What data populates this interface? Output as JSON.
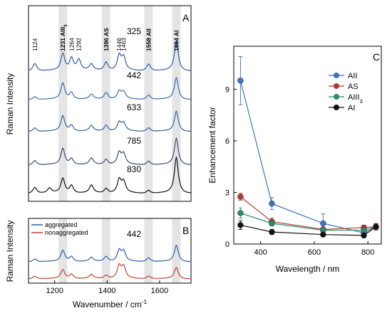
{
  "chart_data": [
    {
      "panel": "A",
      "type": "line",
      "ylabel": "Raman Intensity",
      "xlim": [
        1100,
        1720
      ],
      "spectra": [
        {
          "name": "325",
          "color": "#2f5ea8",
          "peaks": [
            [
              1124,
              1.0
            ],
            [
              1231,
              2.2
            ],
            [
              1264,
              1.6
            ],
            [
              1292,
              1.4
            ],
            [
              1340,
              0.8
            ],
            [
              1396,
              1.1
            ],
            [
              1446,
              1.9
            ],
            [
              1463,
              1.6
            ],
            [
              1558,
              0.9
            ],
            [
              1664,
              3.8
            ]
          ]
        },
        {
          "name": "442",
          "color": "#3c69b0",
          "peaks": [
            [
              1124,
              0.4
            ],
            [
              1231,
              2.1
            ],
            [
              1264,
              0.9
            ],
            [
              1340,
              0.6
            ],
            [
              1396,
              0.9
            ],
            [
              1446,
              1.0
            ],
            [
              1463,
              0.9
            ],
            [
              1558,
              0.6
            ],
            [
              1664,
              2.8
            ]
          ]
        },
        {
          "name": "633",
          "color": "#3a5f9a",
          "peaks": [
            [
              1124,
              0.5
            ],
            [
              1231,
              2.0
            ],
            [
              1264,
              0.8
            ],
            [
              1340,
              0.7
            ],
            [
              1396,
              0.8
            ],
            [
              1446,
              1.1
            ],
            [
              1463,
              1.0
            ],
            [
              1558,
              0.5
            ],
            [
              1664,
              2.6
            ]
          ]
        },
        {
          "name": "785",
          "color": "#3f4a6e",
          "peaks": [
            [
              1124,
              0.6
            ],
            [
              1231,
              2.1
            ],
            [
              1264,
              0.8
            ],
            [
              1340,
              0.8
            ],
            [
              1396,
              0.7
            ],
            [
              1446,
              1.5
            ],
            [
              1463,
              1.3
            ],
            [
              1558,
              0.5
            ],
            [
              1664,
              3.4
            ]
          ]
        },
        {
          "name": "830",
          "color": "#111111",
          "peaks": [
            [
              1124,
              0.8
            ],
            [
              1180,
              0.6
            ],
            [
              1231,
              1.9
            ],
            [
              1264,
              1.0
            ],
            [
              1340,
              1.0
            ],
            [
              1396,
              0.6
            ],
            [
              1446,
              1.7
            ],
            [
              1463,
              1.4
            ],
            [
              1558,
              0.4
            ],
            [
              1664,
              4.6
            ]
          ]
        }
      ],
      "bands": [
        1231,
        1396,
        1558,
        1664
      ],
      "annotations": [
        {
          "text": "1124",
          "x": 1124,
          "bold": false
        },
        {
          "text": "1231 AIII",
          "sub": "3",
          "x": 1231,
          "bold": true
        },
        {
          "text": "1264",
          "x": 1264,
          "bold": false
        },
        {
          "text": "1292",
          "x": 1292,
          "bold": false
        },
        {
          "text": "1396 AS",
          "x": 1396,
          "bold": true
        },
        {
          "text": "1446",
          "x": 1446,
          "bold": false
        },
        {
          "text": "1463",
          "x": 1463,
          "bold": false
        },
        {
          "text": "1558 AII",
          "x": 1558,
          "bold": true
        },
        {
          "text": "1664 AI",
          "x": 1664,
          "bold": true
        }
      ]
    },
    {
      "panel": "B",
      "type": "line",
      "ylabel": "Raman Intensity",
      "xlabel": "Wavenumber / cm",
      "xlabel_sup": "-1",
      "xlim": [
        1100,
        1720
      ],
      "xticks": [
        1200,
        1400,
        1600
      ],
      "label": "442",
      "spectra": [
        {
          "name": "aggregated",
          "color": "#2f5ea8",
          "peaks": [
            [
              1124,
              0.5
            ],
            [
              1231,
              2.0
            ],
            [
              1264,
              0.9
            ],
            [
              1340,
              0.7
            ],
            [
              1396,
              0.9
            ],
            [
              1446,
              1.9
            ],
            [
              1463,
              1.7
            ],
            [
              1558,
              0.7
            ],
            [
              1664,
              2.9
            ]
          ]
        },
        {
          "name": "nonaggregated",
          "color": "#c0432b",
          "peaks": [
            [
              1124,
              0.5
            ],
            [
              1231,
              1.6
            ],
            [
              1264,
              0.8
            ],
            [
              1340,
              0.7
            ],
            [
              1396,
              0.6
            ],
            [
              1446,
              2.2
            ],
            [
              1463,
              2.0
            ],
            [
              1558,
              0.5
            ],
            [
              1664,
              2.0
            ]
          ]
        }
      ],
      "bands": [
        1231,
        1396,
        1558,
        1664
      ]
    },
    {
      "panel": "C",
      "type": "scatter",
      "xlabel": "Wavelength / nm",
      "ylabel": "Enhancement factor",
      "xlim": [
        300,
        850
      ],
      "ylim": [
        0,
        11.5
      ],
      "xticks": [
        400,
        600,
        800
      ],
      "yticks": [
        0,
        3,
        6,
        9
      ],
      "x": [
        325,
        442,
        633,
        785,
        830
      ],
      "series": [
        {
          "name": "AII",
          "color": "#3b74c4",
          "values": [
            9.5,
            2.35,
            1.2,
            0.65,
            1.0
          ],
          "err": [
            1.4,
            0.35,
            0.55,
            0.3,
            0.15
          ]
        },
        {
          "name": "AS",
          "color": "#b23a2e",
          "values": [
            2.75,
            1.3,
            0.85,
            0.95,
            1.0
          ],
          "err": [
            0.2,
            0.2,
            0.1,
            0.15,
            0.2
          ]
        },
        {
          "name": "AIII",
          "sub": "3",
          "color": "#2e8b6e",
          "values": [
            1.8,
            1.2,
            0.8,
            0.8,
            1.0
          ],
          "err": [
            0.3,
            0.15,
            0.1,
            0.1,
            0.15
          ]
        },
        {
          "name": "AI",
          "color": "#111111",
          "values": [
            1.1,
            0.7,
            0.55,
            0.5,
            1.0
          ],
          "err": [
            0.25,
            0.15,
            0.08,
            0.08,
            0.15
          ]
        }
      ]
    }
  ]
}
